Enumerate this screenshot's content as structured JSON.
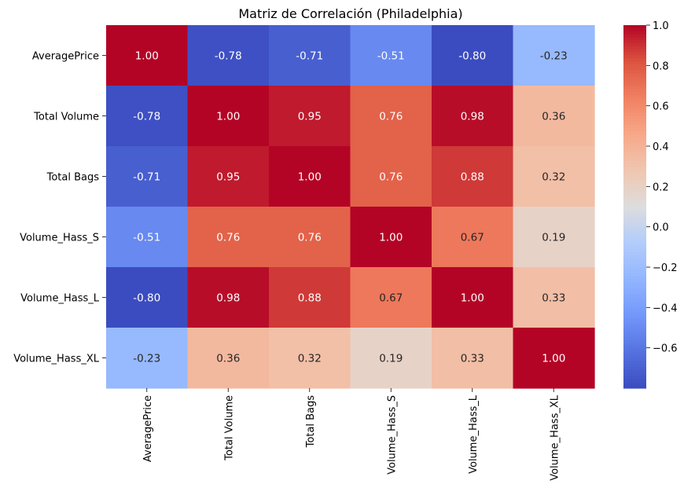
{
  "chart_data": {
    "type": "heatmap",
    "title": "Matriz de Correlación (Philadelphia)",
    "xlabel": "",
    "ylabel": "",
    "rows": [
      "AveragePrice",
      "Total Volume",
      "Total Bags",
      "Volume_Hass_S",
      "Volume_Hass_L",
      "Volume_Hass_XL"
    ],
    "columns": [
      "AveragePrice",
      "Total Volume",
      "Total Bags",
      "Volume_Hass_S",
      "Volume_Hass_L",
      "Volume_Hass_XL"
    ],
    "values": [
      [
        1.0,
        -0.78,
        -0.71,
        -0.51,
        -0.8,
        -0.23
      ],
      [
        -0.78,
        1.0,
        0.95,
        0.76,
        0.98,
        0.36
      ],
      [
        -0.71,
        0.95,
        1.0,
        0.76,
        0.88,
        0.32
      ],
      [
        -0.51,
        0.76,
        0.76,
        1.0,
        0.67,
        0.19
      ],
      [
        -0.8,
        0.98,
        0.88,
        0.67,
        1.0,
        0.33
      ],
      [
        -0.23,
        0.36,
        0.32,
        0.19,
        0.33,
        1.0
      ]
    ],
    "value_format": "0.00",
    "colormap": "coolwarm",
    "colorbar": {
      "range": [
        -0.8,
        1.0
      ],
      "ticks": [
        1.0,
        0.8,
        0.6,
        0.4,
        0.2,
        0.0,
        -0.2,
        -0.4,
        -0.6
      ],
      "tick_labels": [
        "1.0",
        "0.8",
        "0.6",
        "0.4",
        "0.2",
        "0.0",
        "−0.2",
        "−0.4",
        "−0.6"
      ]
    },
    "grid": false,
    "legend": "colorbar-right"
  }
}
